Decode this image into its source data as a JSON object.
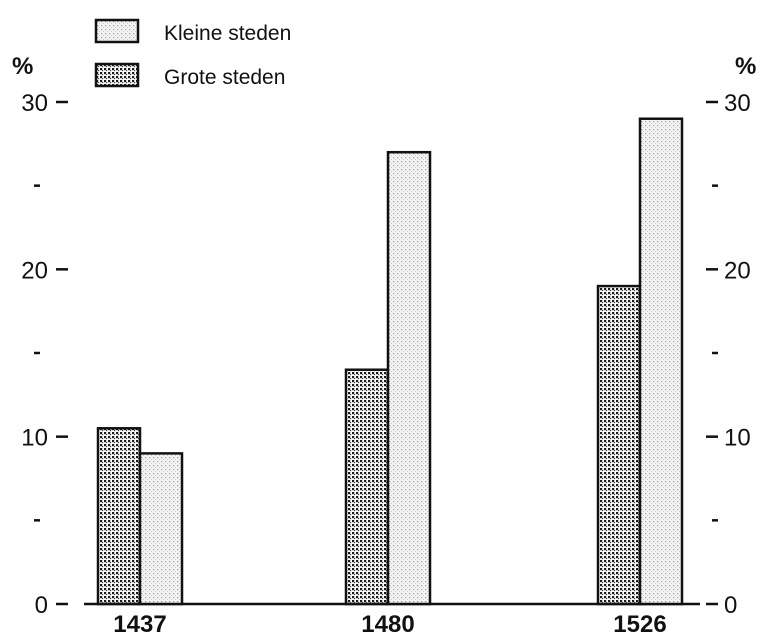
{
  "chart_data": {
    "type": "bar",
    "categories": [
      "1437",
      "1480",
      "1526"
    ],
    "series": [
      {
        "name": "Grote steden",
        "values": [
          10.5,
          14,
          19
        ],
        "pattern": "dense-dots",
        "color": "#1a1a1a"
      },
      {
        "name": "Kleine steden",
        "values": [
          9,
          27,
          29
        ],
        "pattern": "light-dots",
        "color": "#9a9a9a"
      }
    ],
    "legend": {
      "placement": "top-left",
      "order": [
        "Kleine steden",
        "Grote steden"
      ]
    },
    "yunit_left": "%",
    "yunit_right": "%",
    "ylim": [
      0,
      30
    ],
    "yticks_major": [
      0,
      10,
      20,
      30
    ],
    "yticks_minor": [
      5,
      15,
      25
    ],
    "grid": false
  }
}
